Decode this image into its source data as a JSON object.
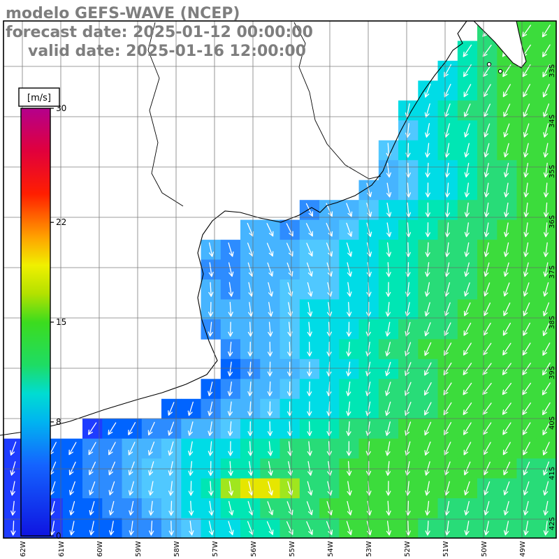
{
  "header": {
    "model_line": "modelo GEFS-WAVE (NCEP)",
    "forecast_line": "forecast date: 2025-01-12 00:00:00",
    "valid_line": "valid date: 2025-01-16 12:00:00",
    "text_color": "#7e7e7e"
  },
  "colorbar": {
    "unit_label": "[m/s]",
    "min": 0,
    "max": 30,
    "tick_values": [
      30,
      22,
      15,
      8,
      0
    ],
    "stops": [
      {
        "v": 0,
        "c": "#0f14e1"
      },
      {
        "v": 5,
        "c": "#1464ff"
      },
      {
        "v": 8,
        "c": "#00b4f0"
      },
      {
        "v": 10,
        "c": "#00dcd2"
      },
      {
        "v": 12,
        "c": "#1edc64"
      },
      {
        "v": 15,
        "c": "#3cdc1e"
      },
      {
        "v": 17,
        "c": "#b4e100"
      },
      {
        "v": 19,
        "c": "#f0f000"
      },
      {
        "v": 21,
        "c": "#ffa000"
      },
      {
        "v": 24,
        "c": "#ff1e00"
      },
      {
        "v": 27,
        "c": "#e1003c"
      },
      {
        "v": 30,
        "c": "#b4008c"
      }
    ]
  },
  "map": {
    "lat_labels": [
      "33S",
      "34S",
      "35S",
      "36S",
      "37S",
      "38S",
      "39S",
      "40S",
      "41S",
      "42S"
    ],
    "lon_labels": [
      "62W",
      "61W",
      "60W",
      "59W",
      "58W",
      "57W",
      "56W",
      "55W",
      "54W",
      "53W",
      "52W",
      "51W",
      "50W",
      "49W"
    ],
    "grid_color": "#666666",
    "arrow_color": "#ffffff",
    "coastline": "668,30 655,48 662,62 648,72 638,88 622,108 605,132 588,160 572,190 558,220 548,245 532,265 508,280 482,290 468,294 458,304 446,297 428,308 402,318 372,312 344,304 322,302 304,316 290,336 283,362 291,392 283,426 289,458 299,488 311,516 296,536 266,550 232,562 196,572 150,586 100,603 48,616 0,623",
    "river1": "222,32 212,72 228,112 214,158 226,204 217,248 232,276 262,295",
    "river2": "421,32 437,62 428,96 443,132 451,172 468,206 494,236 528,256 545,252",
    "east_land": "678,30 694,46 708,60 720,74 734,90 746,97 753,88 747,66 742,44 739,30",
    "islands": [
      [
        700,
        92
      ],
      [
        716,
        102
      ]
    ]
  },
  "chart_data": {
    "type": "heatmap",
    "title": "GEFS-WAVE forecast wind/wave speed field with direction arrows",
    "units": "m/s",
    "value_range": [
      0,
      30
    ],
    "value_key": {
      "1": 3,
      "2": 4,
      "3": 5,
      "4": 6,
      "5": 7,
      "6": 8,
      "7": 9,
      "8": 11,
      "9": 12,
      "a": 14,
      "b": 16
    },
    "palette": {
      "1": "#1e3cff",
      "2": "#0064ff",
      "3": "#2d8cff",
      "4": "#46b4ff",
      "5": "#50c8ff",
      "6": "#00dce6",
      "7": "#00e6b4",
      "8": "#28dc78",
      "9": "#3cdc3c",
      "a": "#a0e61e",
      "b": "#e6e600"
    },
    "land_char": ".",
    "grid_rows": [
      "........................8999",
      ".......................78999",
      "......................678999",
      ".....................6678999",
      "....................66788999",
      "....................56778999",
      "...................566778999",
      "...................456678899",
      "..................4456678899",
      "...............3445667788899",
      "............4434456677888999",
      "..........434445566778889999",
      "..........334445566778889999",
      "..........434455566778889999",
      "..........444456666778899999",
      "..........344456667788899999",
      "...........34456677889999999",
      "...........23445667788999999",
      "..........234456677888999999",
      "........22344566677888999999",
      "....122334456667788899999999",
      "1122334456667788889999999999",
      "1122334556677888899999999988",
      "11223345567abba8899999998888",
      "1112233456677888999999888888",
      "1112223345667788899998888888"
    ]
  }
}
